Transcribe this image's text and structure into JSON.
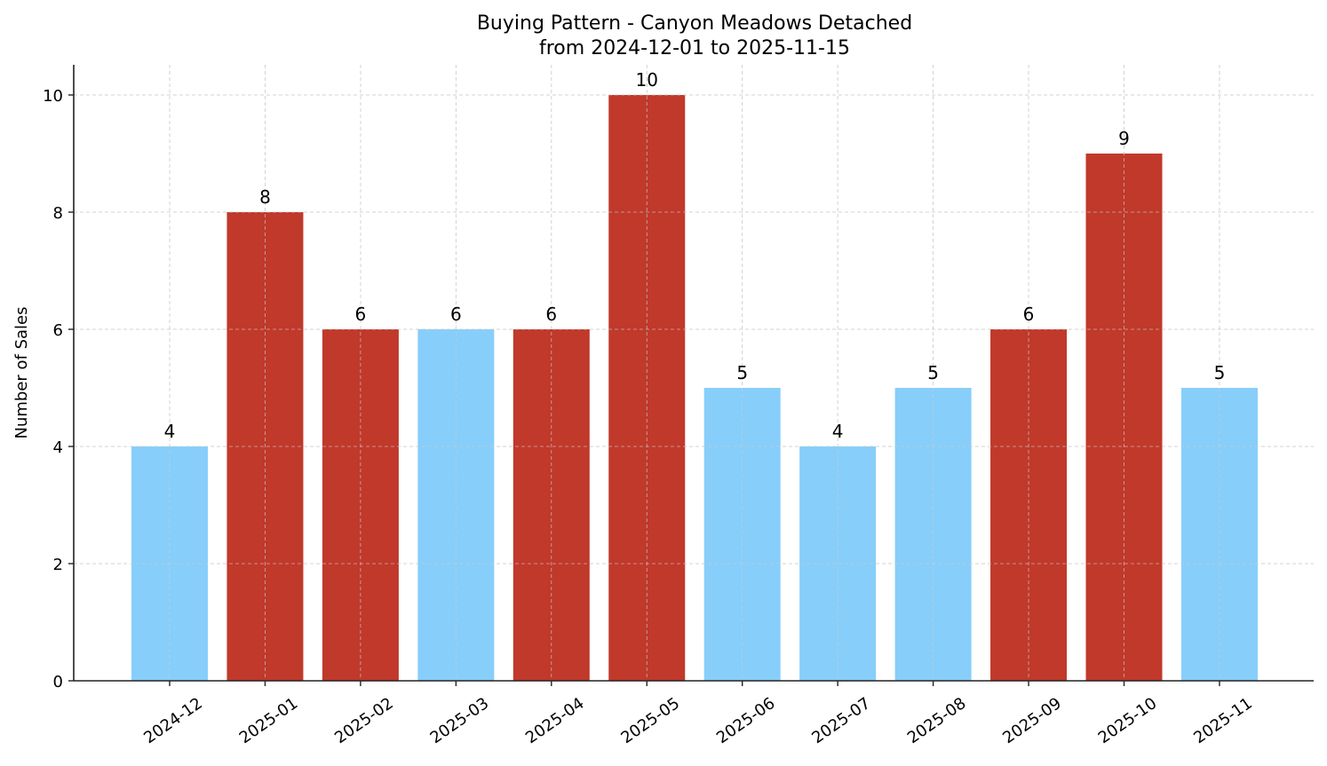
{
  "chart_data": {
    "type": "bar",
    "title": "Buying Pattern - Canyon Meadows Detached",
    "subtitle": "from 2024-12-01 to 2025-11-15",
    "xlabel": "",
    "ylabel": "Number of Sales",
    "categories": [
      "2024-12",
      "2025-01",
      "2025-02",
      "2025-03",
      "2025-04",
      "2025-05",
      "2025-06",
      "2025-07",
      "2025-08",
      "2025-09",
      "2025-10",
      "2025-11"
    ],
    "values": [
      4,
      8,
      6,
      6,
      6,
      10,
      5,
      4,
      5,
      6,
      9,
      5
    ],
    "bar_colors": [
      "#87cefa",
      "#c0392b",
      "#c0392b",
      "#87cefa",
      "#c0392b",
      "#c0392b",
      "#87cefa",
      "#87cefa",
      "#87cefa",
      "#c0392b",
      "#c0392b",
      "#87cefa"
    ],
    "ylim": [
      0,
      10.5
    ],
    "yticks": [
      0,
      2,
      4,
      6,
      8,
      10
    ],
    "grid": true,
    "legend": null,
    "data_labels": true
  },
  "colors": {
    "high": "#c0392b",
    "normal": "#87cefa",
    "grid": "#cccccc",
    "axis": "#222222"
  }
}
